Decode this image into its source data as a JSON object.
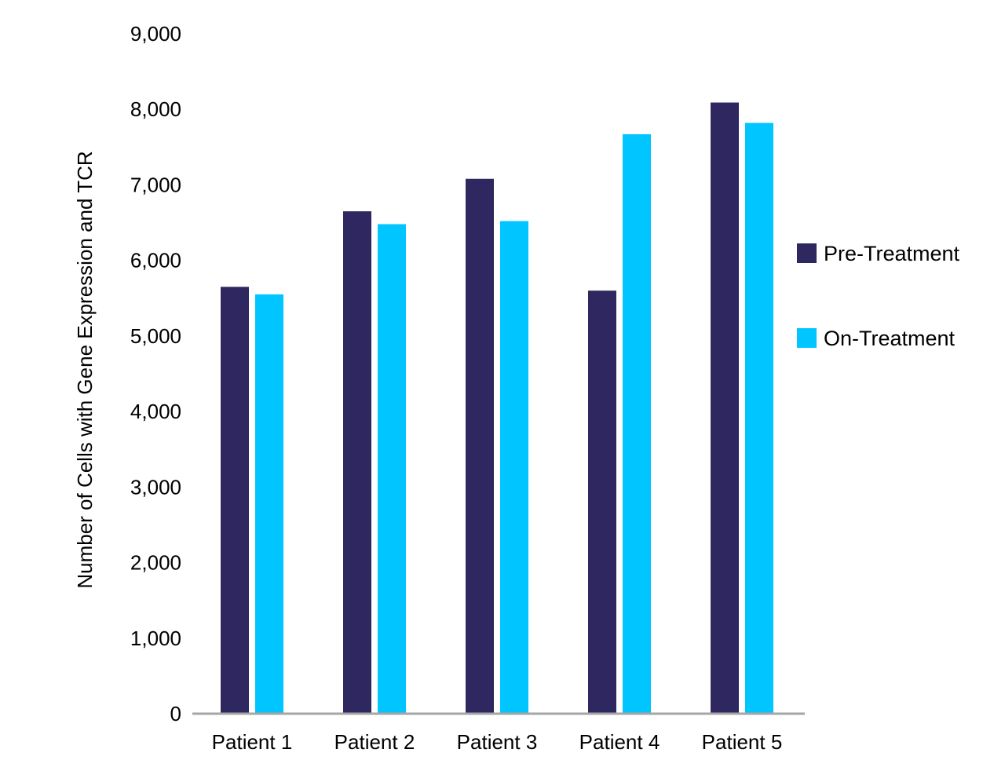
{
  "chart_data": {
    "type": "bar",
    "title": "",
    "xlabel": "",
    "ylabel": "Number of Cells with Gene Expression and TCR",
    "categories": [
      "Patient 1",
      "Patient 2",
      "Patient 3",
      "Patient 4",
      "Patient 5"
    ],
    "series": [
      {
        "name": "Pre-Treatment",
        "color": "#2E2760",
        "values": [
          5650,
          6650,
          7080,
          5600,
          8090
        ]
      },
      {
        "name": "On-Treatment",
        "color": "#00C5FF",
        "values": [
          5550,
          6480,
          6520,
          7670,
          7820
        ]
      }
    ],
    "ylim": [
      0,
      9000
    ],
    "yticks": [
      0,
      1000,
      2000,
      3000,
      4000,
      5000,
      6000,
      7000,
      8000,
      9000
    ],
    "ytick_labels": [
      "0",
      "1,000",
      "2,000",
      "3,000",
      "4,000",
      "5,000",
      "6,000",
      "7,000",
      "8,000",
      "9,000"
    ],
    "grid": false,
    "legend_position": "right",
    "axis_color": "#A6A6A6"
  }
}
